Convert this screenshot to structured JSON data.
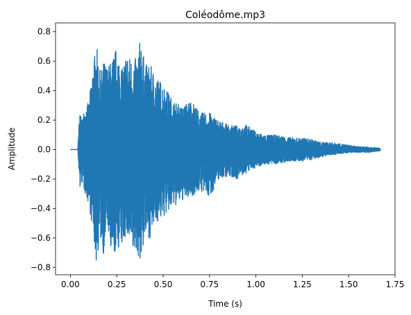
{
  "chart_data": {
    "type": "line",
    "title": "Coléodôme.mp3",
    "xlabel": "Time (s)",
    "ylabel": "Amplitude",
    "xlim": [
      -0.08,
      1.75
    ],
    "ylim": [
      -0.85,
      0.86
    ],
    "x_ticks": [
      0.0,
      0.25,
      0.5,
      0.75,
      1.0,
      1.25,
      1.5,
      1.75
    ],
    "x_tick_labels": [
      "0.00",
      "0.25",
      "0.50",
      "0.75",
      "1.00",
      "1.25",
      "1.50",
      "1.75"
    ],
    "y_ticks": [
      -0.8,
      -0.6,
      -0.4,
      -0.2,
      0.0,
      0.2,
      0.4,
      0.6,
      0.8
    ],
    "y_tick_labels": [
      "−0.8",
      "−0.6",
      "−0.4",
      "−0.2",
      "0.0",
      "0.2",
      "0.4",
      "0.6",
      "0.8"
    ],
    "grid": false,
    "series": [
      {
        "color": "#1f77b4",
        "x_start": 0.0,
        "x_end": 1.67,
        "envelope": {
          "x": [
            0.0,
            0.04,
            0.05,
            0.06,
            0.08,
            0.1,
            0.12,
            0.14,
            0.16,
            0.18,
            0.2,
            0.22,
            0.25,
            0.28,
            0.3,
            0.33,
            0.36,
            0.38,
            0.4,
            0.43,
            0.46,
            0.5,
            0.55,
            0.6,
            0.65,
            0.7,
            0.75,
            0.8,
            0.85,
            0.9,
            0.95,
            1.0,
            1.05,
            1.1,
            1.15,
            1.2,
            1.25,
            1.3,
            1.35,
            1.4,
            1.45,
            1.5,
            1.55,
            1.6,
            1.67
          ],
          "upper": [
            0.0,
            0.0,
            0.27,
            0.2,
            0.3,
            0.32,
            0.56,
            0.72,
            0.52,
            0.6,
            0.57,
            0.6,
            0.7,
            0.55,
            0.66,
            0.62,
            0.62,
            0.78,
            0.58,
            0.58,
            0.5,
            0.45,
            0.34,
            0.29,
            0.34,
            0.25,
            0.25,
            0.2,
            0.17,
            0.16,
            0.17,
            0.12,
            0.1,
            0.1,
            0.09,
            0.08,
            0.08,
            0.07,
            0.05,
            0.05,
            0.04,
            0.03,
            0.02,
            0.02,
            0.01
          ],
          "lower": [
            0.0,
            0.0,
            -0.28,
            -0.22,
            -0.3,
            -0.38,
            -0.55,
            -0.78,
            -0.6,
            -0.72,
            -0.5,
            -0.78,
            -0.68,
            -0.66,
            -0.58,
            -0.72,
            -0.7,
            -0.78,
            -0.6,
            -0.6,
            -0.5,
            -0.46,
            -0.4,
            -0.35,
            -0.32,
            -0.28,
            -0.33,
            -0.2,
            -0.18,
            -0.2,
            -0.16,
            -0.12,
            -0.1,
            -0.1,
            -0.09,
            -0.08,
            -0.08,
            -0.07,
            -0.05,
            -0.04,
            -0.03,
            -0.02,
            -0.02,
            -0.02,
            -0.01
          ]
        }
      }
    ]
  }
}
